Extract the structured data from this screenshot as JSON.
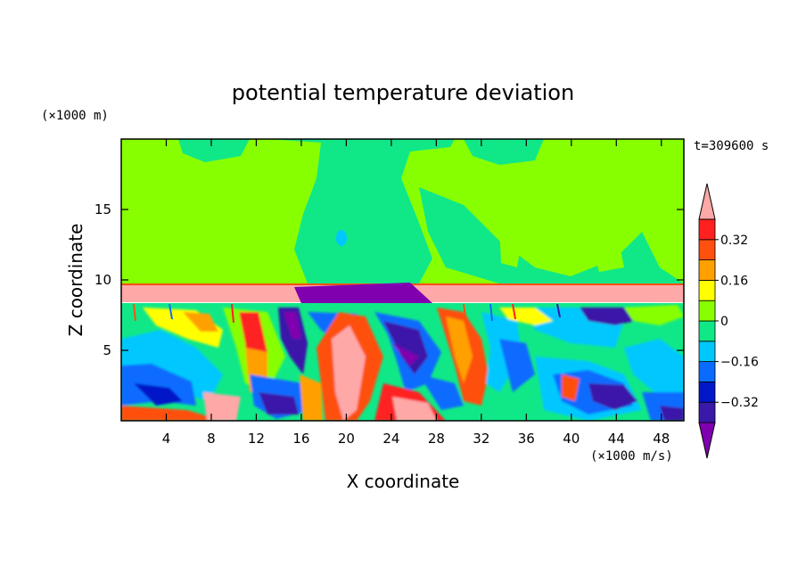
{
  "chart_data": {
    "type": "heatmap",
    "title": "potential temperature deviation",
    "xlabel": "X coordinate",
    "ylabel": "Z coordinate",
    "x_unit": "(×1000 m/s)",
    "y_unit": "(×1000 m)",
    "time_label": "t=309600 s",
    "xlim": [
      0,
      50
    ],
    "ylim": [
      0,
      20
    ],
    "x_ticks": [
      4,
      8,
      12,
      16,
      20,
      24,
      28,
      32,
      36,
      40,
      44,
      48
    ],
    "y_ticks": [
      5,
      10,
      15
    ],
    "colorbar": {
      "levels": [
        -0.4,
        -0.32,
        -0.24,
        -0.16,
        -0.08,
        0,
        0.08,
        0.16,
        0.24,
        0.32,
        0.4
      ],
      "colors": [
        "#8000b0",
        "#3a18a8",
        "#0018c8",
        "#0a6cff",
        "#00c8ff",
        "#10e888",
        "#88ff00",
        "#ffff00",
        "#ffa000",
        "#ff5010",
        "#ff2020",
        "#ffa8a8"
      ],
      "labels": [
        {
          "value": -0.32,
          "text": "−0.32"
        },
        {
          "value": -0.16,
          "text": "−0.16"
        },
        {
          "value": 0,
          "text": "0"
        },
        {
          "value": 0.16,
          "text": "0.16"
        },
        {
          "value": 0.32,
          "text": "0.32"
        }
      ],
      "extend": "both"
    }
  }
}
